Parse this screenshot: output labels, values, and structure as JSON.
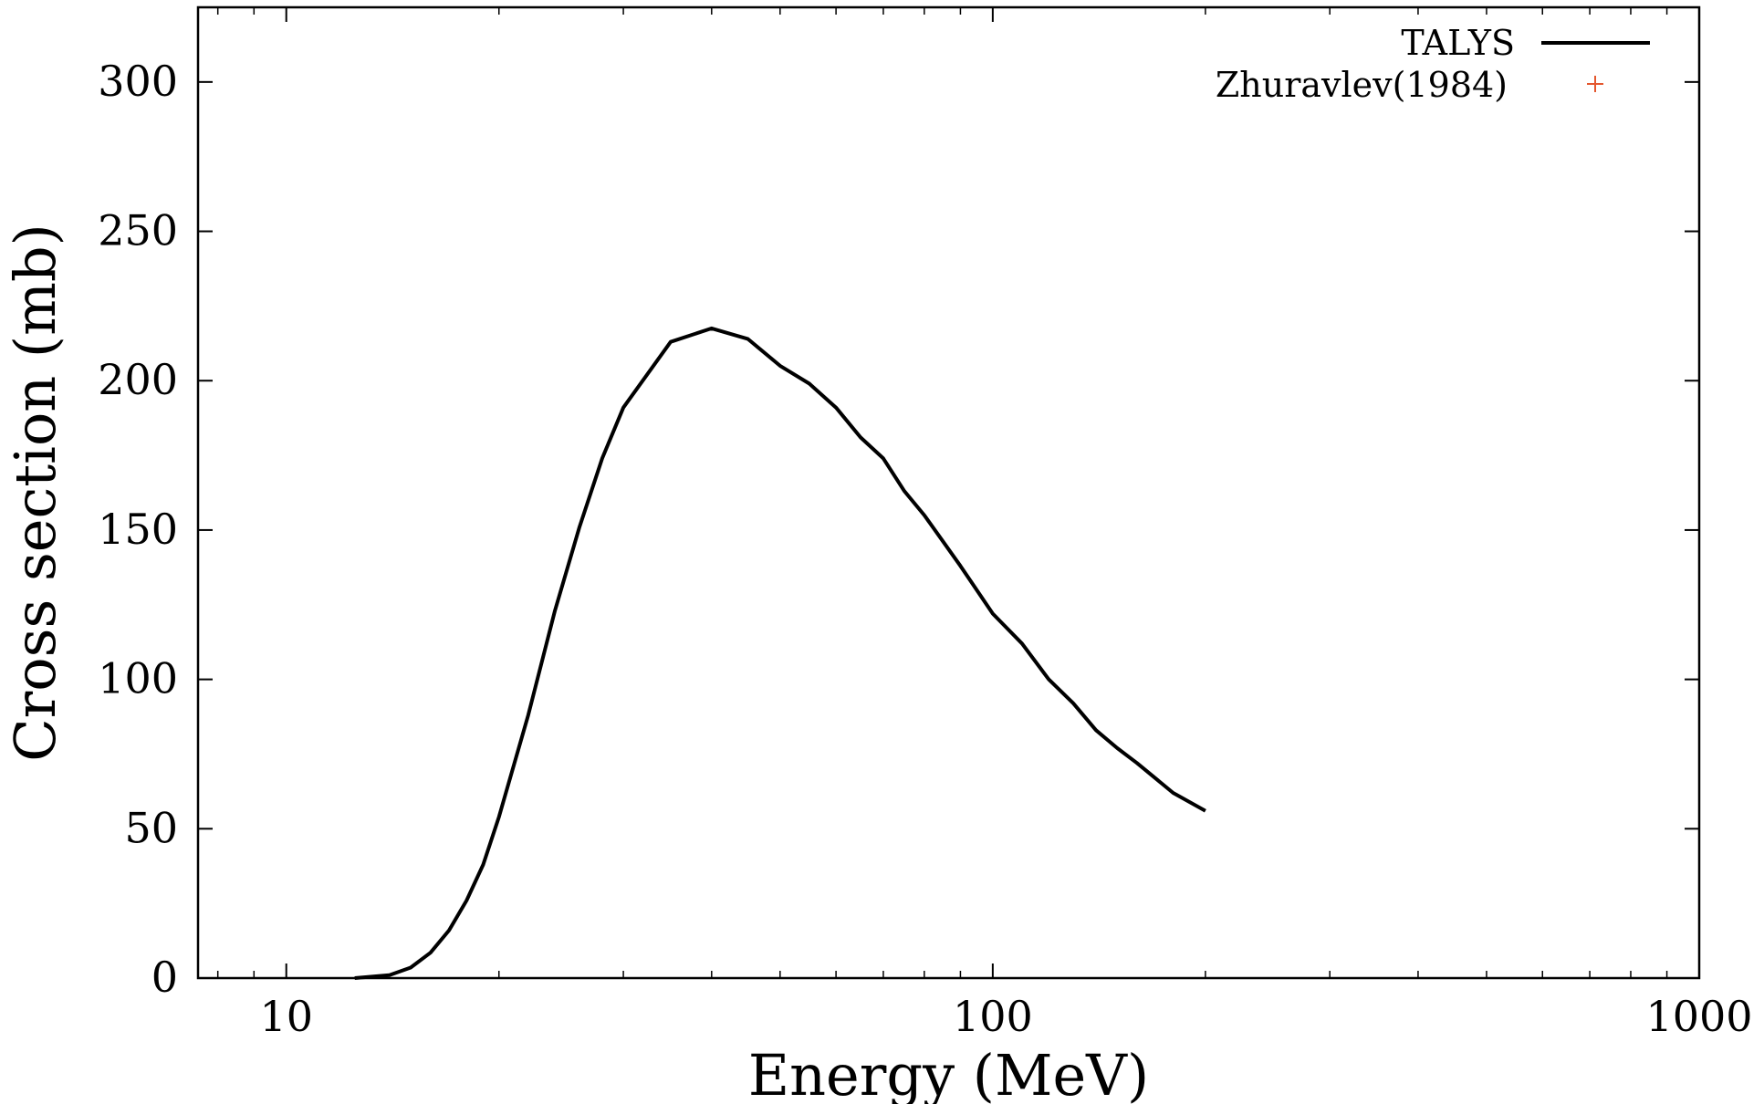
{
  "chart_data": {
    "type": "line",
    "title": "",
    "xlabel": "Energy (MeV)",
    "ylabel": "Cross section (mb)",
    "x_scale": "log",
    "xlim": [
      7.5,
      1000
    ],
    "ylim": [
      0,
      325
    ],
    "x_ticks": [
      10,
      100,
      1000
    ],
    "x_tick_labels": [
      "10",
      "100",
      "1000"
    ],
    "y_ticks": [
      0,
      50,
      100,
      150,
      200,
      250,
      300
    ],
    "y_tick_labels": [
      "0",
      "50",
      "100",
      "150",
      "200",
      "250",
      "300"
    ],
    "grid": false,
    "legend_position": "top-right",
    "series": [
      {
        "name": "TALYS",
        "color": "#000000",
        "style": "line",
        "x": [
          12.5,
          14,
          15,
          16,
          17,
          18,
          19,
          20,
          22,
          24,
          26,
          28,
          30,
          35,
          40,
          45,
          50,
          55,
          60,
          65,
          70,
          75,
          80,
          90,
          100,
          110,
          120,
          130,
          140,
          150,
          160,
          180,
          200
        ],
        "y": [
          0,
          1,
          3.5,
          8.5,
          16,
          26,
          38,
          54,
          88,
          123,
          151,
          174,
          191,
          213,
          217.5,
          214,
          205,
          199,
          191,
          181,
          174,
          163,
          155,
          138,
          122,
          112,
          100,
          92,
          83,
          77,
          72,
          62,
          56
        ]
      },
      {
        "name": "Zhuravlev(1984)",
        "color": "#e4572e",
        "style": "points",
        "marker": "plus",
        "x": [],
        "y": []
      }
    ]
  }
}
